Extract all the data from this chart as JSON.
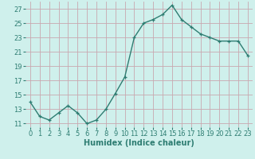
{
  "x": [
    0,
    1,
    2,
    3,
    4,
    5,
    6,
    7,
    8,
    9,
    10,
    11,
    12,
    13,
    14,
    15,
    16,
    17,
    18,
    19,
    20,
    21,
    22,
    23
  ],
  "y": [
    14.0,
    12.0,
    11.5,
    12.5,
    13.5,
    12.5,
    11.0,
    11.5,
    13.0,
    15.2,
    17.5,
    23.0,
    25.0,
    25.5,
    26.2,
    27.5,
    25.5,
    24.5,
    23.5,
    23.0,
    22.5,
    22.5,
    22.5,
    20.5
  ],
  "xlabel": "Humidex (Indice chaleur)",
  "ylim": [
    10.5,
    28.0
  ],
  "yticks": [
    11,
    13,
    15,
    17,
    19,
    21,
    23,
    25,
    27
  ],
  "xticks": [
    0,
    1,
    2,
    3,
    4,
    5,
    6,
    7,
    8,
    9,
    10,
    11,
    12,
    13,
    14,
    15,
    16,
    17,
    18,
    19,
    20,
    21,
    22,
    23
  ],
  "line_color": "#2e7d72",
  "marker_color": "#2e7d72",
  "bg_color": "#cff0ec",
  "grid_color": "#c9a8b0",
  "tick_label_color": "#2e7d72",
  "xlabel_color": "#2e7d72",
  "xlabel_fontsize": 7,
  "tick_fontsize": 6,
  "line_width": 1.0,
  "marker_size": 2.5
}
